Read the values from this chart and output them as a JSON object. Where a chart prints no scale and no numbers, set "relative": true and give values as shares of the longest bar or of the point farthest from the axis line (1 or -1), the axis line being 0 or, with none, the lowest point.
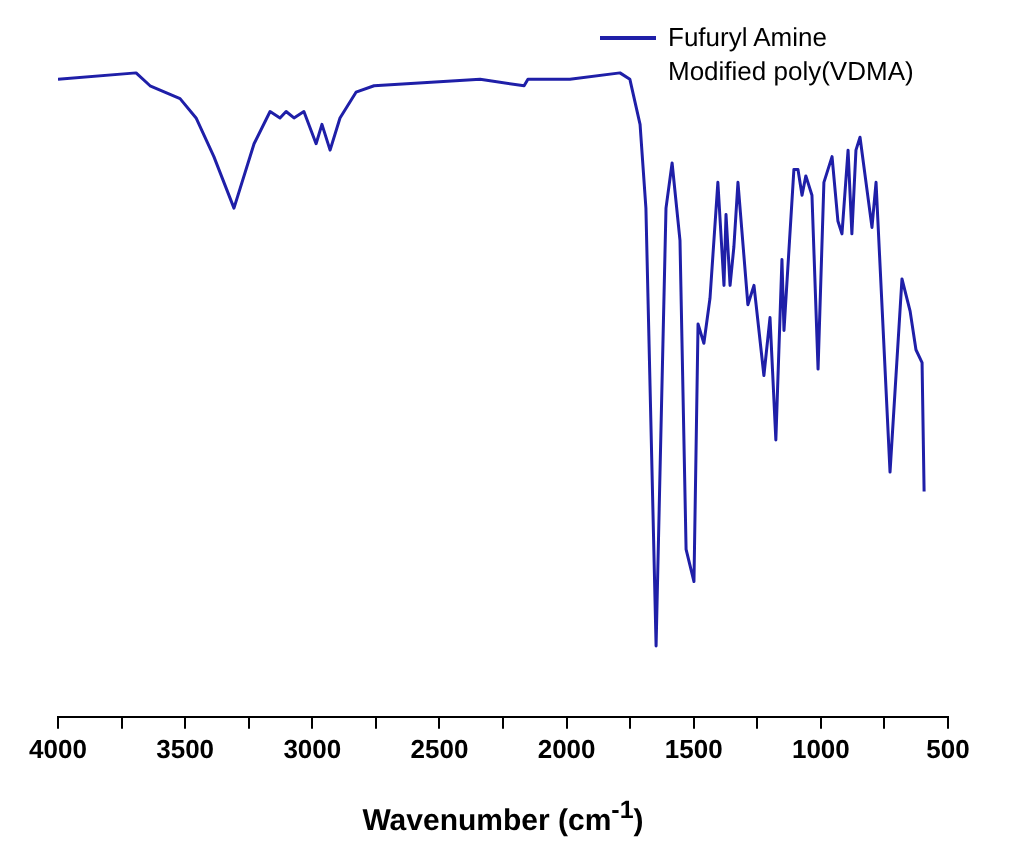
{
  "chart_data": {
    "type": "line",
    "xlabel": "Wavenumber (cm$^{-1}$)",
    "relative": true,
    "legend": "top right",
    "marker": "none",
    "line_style": "solid",
    "grid": false,
    "tick_labels": "x",
    "xlim": [
      4000,
      500
    ],
    "xticks": [
      4000,
      {
        "value": 3750,
        "label": null
      },
      3500,
      {
        "value": 3250,
        "label": null
      },
      3000,
      {
        "value": 2750,
        "label": null
      },
      2500,
      {
        "value": 2250,
        "label": null
      },
      2000,
      {
        "value": 1750,
        "label": null
      },
      1500,
      {
        "value": 1250,
        "label": null
      },
      1000,
      {
        "value": 750,
        "label": null
      },
      500
    ],
    "series": [
      {
        "name": "Fufuryl Amine\nModified poly(VDMA)",
        "color": "#1f1fa8",
        "x": [
          4000,
          3693,
          3638,
          3520,
          3457,
          3387,
          3308,
          3229,
          3166,
          3127,
          3103,
          3072,
          3033,
          2985,
          2962,
          2930,
          2891,
          2828,
          2757,
          2340,
          2167,
          2152,
          2120,
          1987,
          1790,
          1751,
          1711,
          1688,
          1648,
          1609,
          1585,
          1554,
          1530,
          1499,
          1483,
          1460,
          1436,
          1405,
          1381,
          1373,
          1357,
          1342,
          1326,
          1287,
          1263,
          1224,
          1200,
          1177,
          1153,
          1145,
          1106,
          1090,
          1074,
          1059,
          1035,
          1011,
          988,
          956,
          933,
          917,
          893,
          878,
          862,
          846,
          799,
          783,
          728,
          681,
          649,
          626,
          602,
          594
        ],
        "values": [
          0.99,
          1.0,
          0.98,
          0.96,
          0.93,
          0.87,
          0.79,
          0.89,
          0.94,
          0.93,
          0.94,
          0.93,
          0.94,
          0.89,
          0.92,
          0.88,
          0.93,
          0.97,
          0.98,
          0.99,
          0.98,
          0.99,
          0.99,
          0.99,
          1.0,
          0.99,
          0.92,
          0.79,
          0.11,
          0.79,
          0.86,
          0.74,
          0.26,
          0.21,
          0.61,
          0.58,
          0.65,
          0.83,
          0.67,
          0.78,
          0.67,
          0.73,
          0.83,
          0.64,
          0.67,
          0.53,
          0.62,
          0.43,
          0.71,
          0.6,
          0.85,
          0.85,
          0.81,
          0.84,
          0.81,
          0.54,
          0.83,
          0.87,
          0.77,
          0.75,
          0.88,
          0.75,
          0.88,
          0.9,
          0.76,
          0.83,
          0.38,
          0.68,
          0.63,
          0.57,
          0.55,
          0.35
        ]
      }
    ]
  }
}
